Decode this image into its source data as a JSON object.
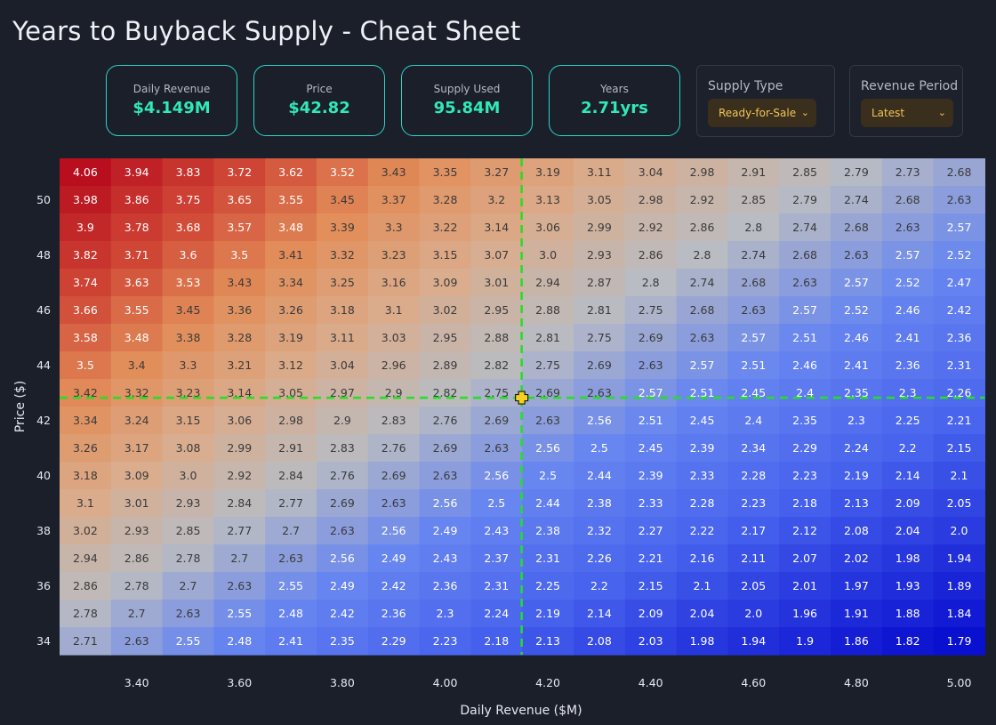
{
  "title": "Years to Buyback Supply - Cheat Sheet",
  "stats": [
    {
      "label": "Daily Revenue",
      "value": "$4.149M"
    },
    {
      "label": "Price",
      "value": "$42.82"
    },
    {
      "label": "Supply Used",
      "value": "95.84M"
    },
    {
      "label": "Years",
      "value": "2.71yrs"
    }
  ],
  "controls": {
    "supply_type": {
      "label": "Supply Type",
      "selected": "Ready-for-Sale"
    },
    "revenue_period": {
      "label": "Revenue Period",
      "selected": "Latest"
    }
  },
  "colors": {
    "accent": "#31e8b6",
    "border": "#2fd3c8",
    "marker": "#f5d020",
    "crosshair": "#22e022",
    "high": "#b80f1e",
    "mid": "#c0c0c0",
    "low": "#0a10d0"
  },
  "chart_data": {
    "type": "heatmap",
    "xlabel": "Daily Revenue ($M)",
    "ylabel": "Price ($)",
    "x": [
      3.3,
      3.4,
      3.5,
      3.6,
      3.7,
      3.8,
      3.9,
      4.0,
      4.1,
      4.2,
      4.3,
      4.4,
      4.5,
      4.6,
      4.7,
      4.8,
      4.9,
      5.0
    ],
    "y": [
      51,
      50,
      49,
      48,
      47,
      46,
      45,
      44,
      43,
      42,
      41,
      40,
      39,
      38,
      37,
      36,
      35,
      34
    ],
    "xticks": [
      "3.40",
      "3.60",
      "3.80",
      "4.00",
      "4.20",
      "4.40",
      "4.60",
      "4.80",
      "5.00"
    ],
    "yticks": [
      "50",
      "48",
      "46",
      "44",
      "42",
      "40",
      "38",
      "36",
      "34"
    ],
    "marker": {
      "x": 4.149,
      "y": 42.82
    },
    "values": [
      [
        "4.06",
        "3.94",
        "3.83",
        "3.72",
        "3.62",
        "3.52",
        "3.43",
        "3.35",
        "3.27",
        "3.19",
        "3.11",
        "3.04",
        "2.98",
        "2.91",
        "2.85",
        "2.79",
        "2.73",
        "2.68"
      ],
      [
        "3.98",
        "3.86",
        "3.75",
        "3.65",
        "3.55",
        "3.45",
        "3.37",
        "3.28",
        "3.2",
        "3.13",
        "3.05",
        "2.98",
        "2.92",
        "2.85",
        "2.79",
        "2.74",
        "2.68",
        "2.63"
      ],
      [
        "3.9",
        "3.78",
        "3.68",
        "3.57",
        "3.48",
        "3.39",
        "3.3",
        "3.22",
        "3.14",
        "3.06",
        "2.99",
        "2.92",
        "2.86",
        "2.8",
        "2.74",
        "2.68",
        "2.63",
        "2.57"
      ],
      [
        "3.82",
        "3.71",
        "3.6",
        "3.5",
        "3.41",
        "3.32",
        "3.23",
        "3.15",
        "3.07",
        "3.0",
        "2.93",
        "2.86",
        "2.8",
        "2.74",
        "2.68",
        "2.63",
        "2.57",
        "2.52"
      ],
      [
        "3.74",
        "3.63",
        "3.53",
        "3.43",
        "3.34",
        "3.25",
        "3.16",
        "3.09",
        "3.01",
        "2.94",
        "2.87",
        "2.8",
        "2.74",
        "2.68",
        "2.63",
        "2.57",
        "2.52",
        "2.47"
      ],
      [
        "3.66",
        "3.55",
        "3.45",
        "3.36",
        "3.26",
        "3.18",
        "3.1",
        "3.02",
        "2.95",
        "2.88",
        "2.81",
        "2.75",
        "2.68",
        "2.63",
        "2.57",
        "2.52",
        "2.46",
        "2.42"
      ],
      [
        "3.58",
        "3.48",
        "3.38",
        "3.28",
        "3.19",
        "3.11",
        "3.03",
        "2.95",
        "2.88",
        "2.81",
        "2.75",
        "2.69",
        "2.63",
        "2.57",
        "2.51",
        "2.46",
        "2.41",
        "2.36"
      ],
      [
        "3.5",
        "3.4",
        "3.3",
        "3.21",
        "3.12",
        "3.04",
        "2.96",
        "2.89",
        "2.82",
        "2.75",
        "2.69",
        "2.63",
        "2.57",
        "2.51",
        "2.46",
        "2.41",
        "2.36",
        "2.31"
      ],
      [
        "3.42",
        "3.32",
        "3.23",
        "3.14",
        "3.05",
        "2.97",
        "2.9",
        "2.82",
        "2.75",
        "2.69",
        "2.63",
        "2.57",
        "2.51",
        "2.45",
        "2.4",
        "2.35",
        "2.3",
        "2.26"
      ],
      [
        "3.34",
        "3.24",
        "3.15",
        "3.06",
        "2.98",
        "2.9",
        "2.83",
        "2.76",
        "2.69",
        "2.63",
        "2.56",
        "2.51",
        "2.45",
        "2.4",
        "2.35",
        "2.3",
        "2.25",
        "2.21"
      ],
      [
        "3.26",
        "3.17",
        "3.08",
        "2.99",
        "2.91",
        "2.83",
        "2.76",
        "2.69",
        "2.63",
        "2.56",
        "2.5",
        "2.45",
        "2.39",
        "2.34",
        "2.29",
        "2.24",
        "2.2",
        "2.15"
      ],
      [
        "3.18",
        "3.09",
        "3.0",
        "2.92",
        "2.84",
        "2.76",
        "2.69",
        "2.63",
        "2.56",
        "2.5",
        "2.44",
        "2.39",
        "2.33",
        "2.28",
        "2.23",
        "2.19",
        "2.14",
        "2.1"
      ],
      [
        "3.1",
        "3.01",
        "2.93",
        "2.84",
        "2.77",
        "2.69",
        "2.63",
        "2.56",
        "2.5",
        "2.44",
        "2.38",
        "2.33",
        "2.28",
        "2.23",
        "2.18",
        "2.13",
        "2.09",
        "2.05"
      ],
      [
        "3.02",
        "2.93",
        "2.85",
        "2.77",
        "2.7",
        "2.63",
        "2.56",
        "2.49",
        "2.43",
        "2.38",
        "2.32",
        "2.27",
        "2.22",
        "2.17",
        "2.12",
        "2.08",
        "2.04",
        "2.0"
      ],
      [
        "2.94",
        "2.86",
        "2.78",
        "2.7",
        "2.63",
        "2.56",
        "2.49",
        "2.43",
        "2.37",
        "2.31",
        "2.26",
        "2.21",
        "2.16",
        "2.11",
        "2.07",
        "2.02",
        "1.98",
        "1.94"
      ],
      [
        "2.86",
        "2.78",
        "2.7",
        "2.63",
        "2.55",
        "2.49",
        "2.42",
        "2.36",
        "2.31",
        "2.25",
        "2.2",
        "2.15",
        "2.1",
        "2.05",
        "2.01",
        "1.97",
        "1.93",
        "1.89"
      ],
      [
        "2.78",
        "2.7",
        "2.63",
        "2.55",
        "2.48",
        "2.42",
        "2.36",
        "2.3",
        "2.24",
        "2.19",
        "2.14",
        "2.09",
        "2.04",
        "2.0",
        "1.96",
        "1.91",
        "1.88",
        "1.84"
      ],
      [
        "2.71",
        "2.63",
        "2.55",
        "2.48",
        "2.41",
        "2.35",
        "2.29",
        "2.23",
        "2.18",
        "2.13",
        "2.08",
        "2.03",
        "1.98",
        "1.94",
        "1.9",
        "1.86",
        "1.82",
        "1.79"
      ]
    ]
  }
}
